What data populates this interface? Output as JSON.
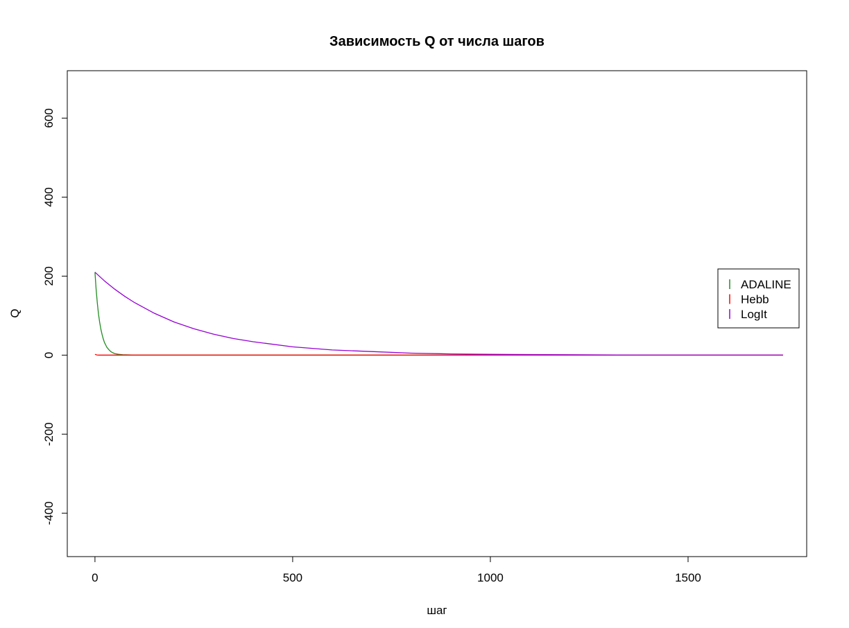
{
  "chart_data": {
    "type": "line",
    "title": "Зависимость Q от числа шагов",
    "xlabel": "шаг",
    "ylabel": "Q",
    "xlim": [
      -70,
      1800
    ],
    "ylim": [
      -510,
      720
    ],
    "x_ticks": [
      0,
      500,
      1000,
      1500
    ],
    "x_tick_labels": [
      "0",
      "500",
      "1000",
      "1500"
    ],
    "y_ticks": [
      -400,
      -200,
      0,
      200,
      400,
      600
    ],
    "y_tick_labels": [
      "-400",
      "-200",
      "0",
      "200",
      "400",
      "600"
    ],
    "grid": false,
    "legend_position": "right",
    "series": [
      {
        "name": "ADALINE",
        "color": "#228B22",
        "x": [
          0,
          3,
          6,
          9,
          12,
          15,
          18,
          21,
          24,
          27,
          30,
          35,
          40,
          45,
          50,
          60,
          70,
          100,
          300,
          600,
          1000,
          1400,
          1740
        ],
        "y": [
          210,
          166,
          132,
          104,
          83,
          65,
          52,
          41,
          32,
          26,
          20,
          14,
          9,
          6,
          4,
          2,
          1,
          0,
          0,
          0,
          0,
          0,
          0
        ]
      },
      {
        "name": "Hebb",
        "color": "#FF0000",
        "x": [
          0,
          5,
          10,
          50,
          300,
          600,
          1000,
          1400,
          1740
        ],
        "y": [
          2,
          0.5,
          0,
          0,
          0,
          0,
          0,
          0,
          0
        ]
      },
      {
        "name": "LogIt",
        "color": "#9400D3",
        "x": [
          0,
          25,
          50,
          75,
          100,
          150,
          200,
          250,
          300,
          350,
          400,
          500,
          600,
          700,
          800,
          900,
          1000,
          1200,
          1400,
          1600,
          1740
        ],
        "y": [
          210,
          187,
          167,
          149,
          133,
          106,
          84,
          67,
          53,
          42,
          34,
          21,
          13,
          9,
          5,
          3,
          2,
          1,
          0,
          0,
          0
        ]
      }
    ]
  }
}
